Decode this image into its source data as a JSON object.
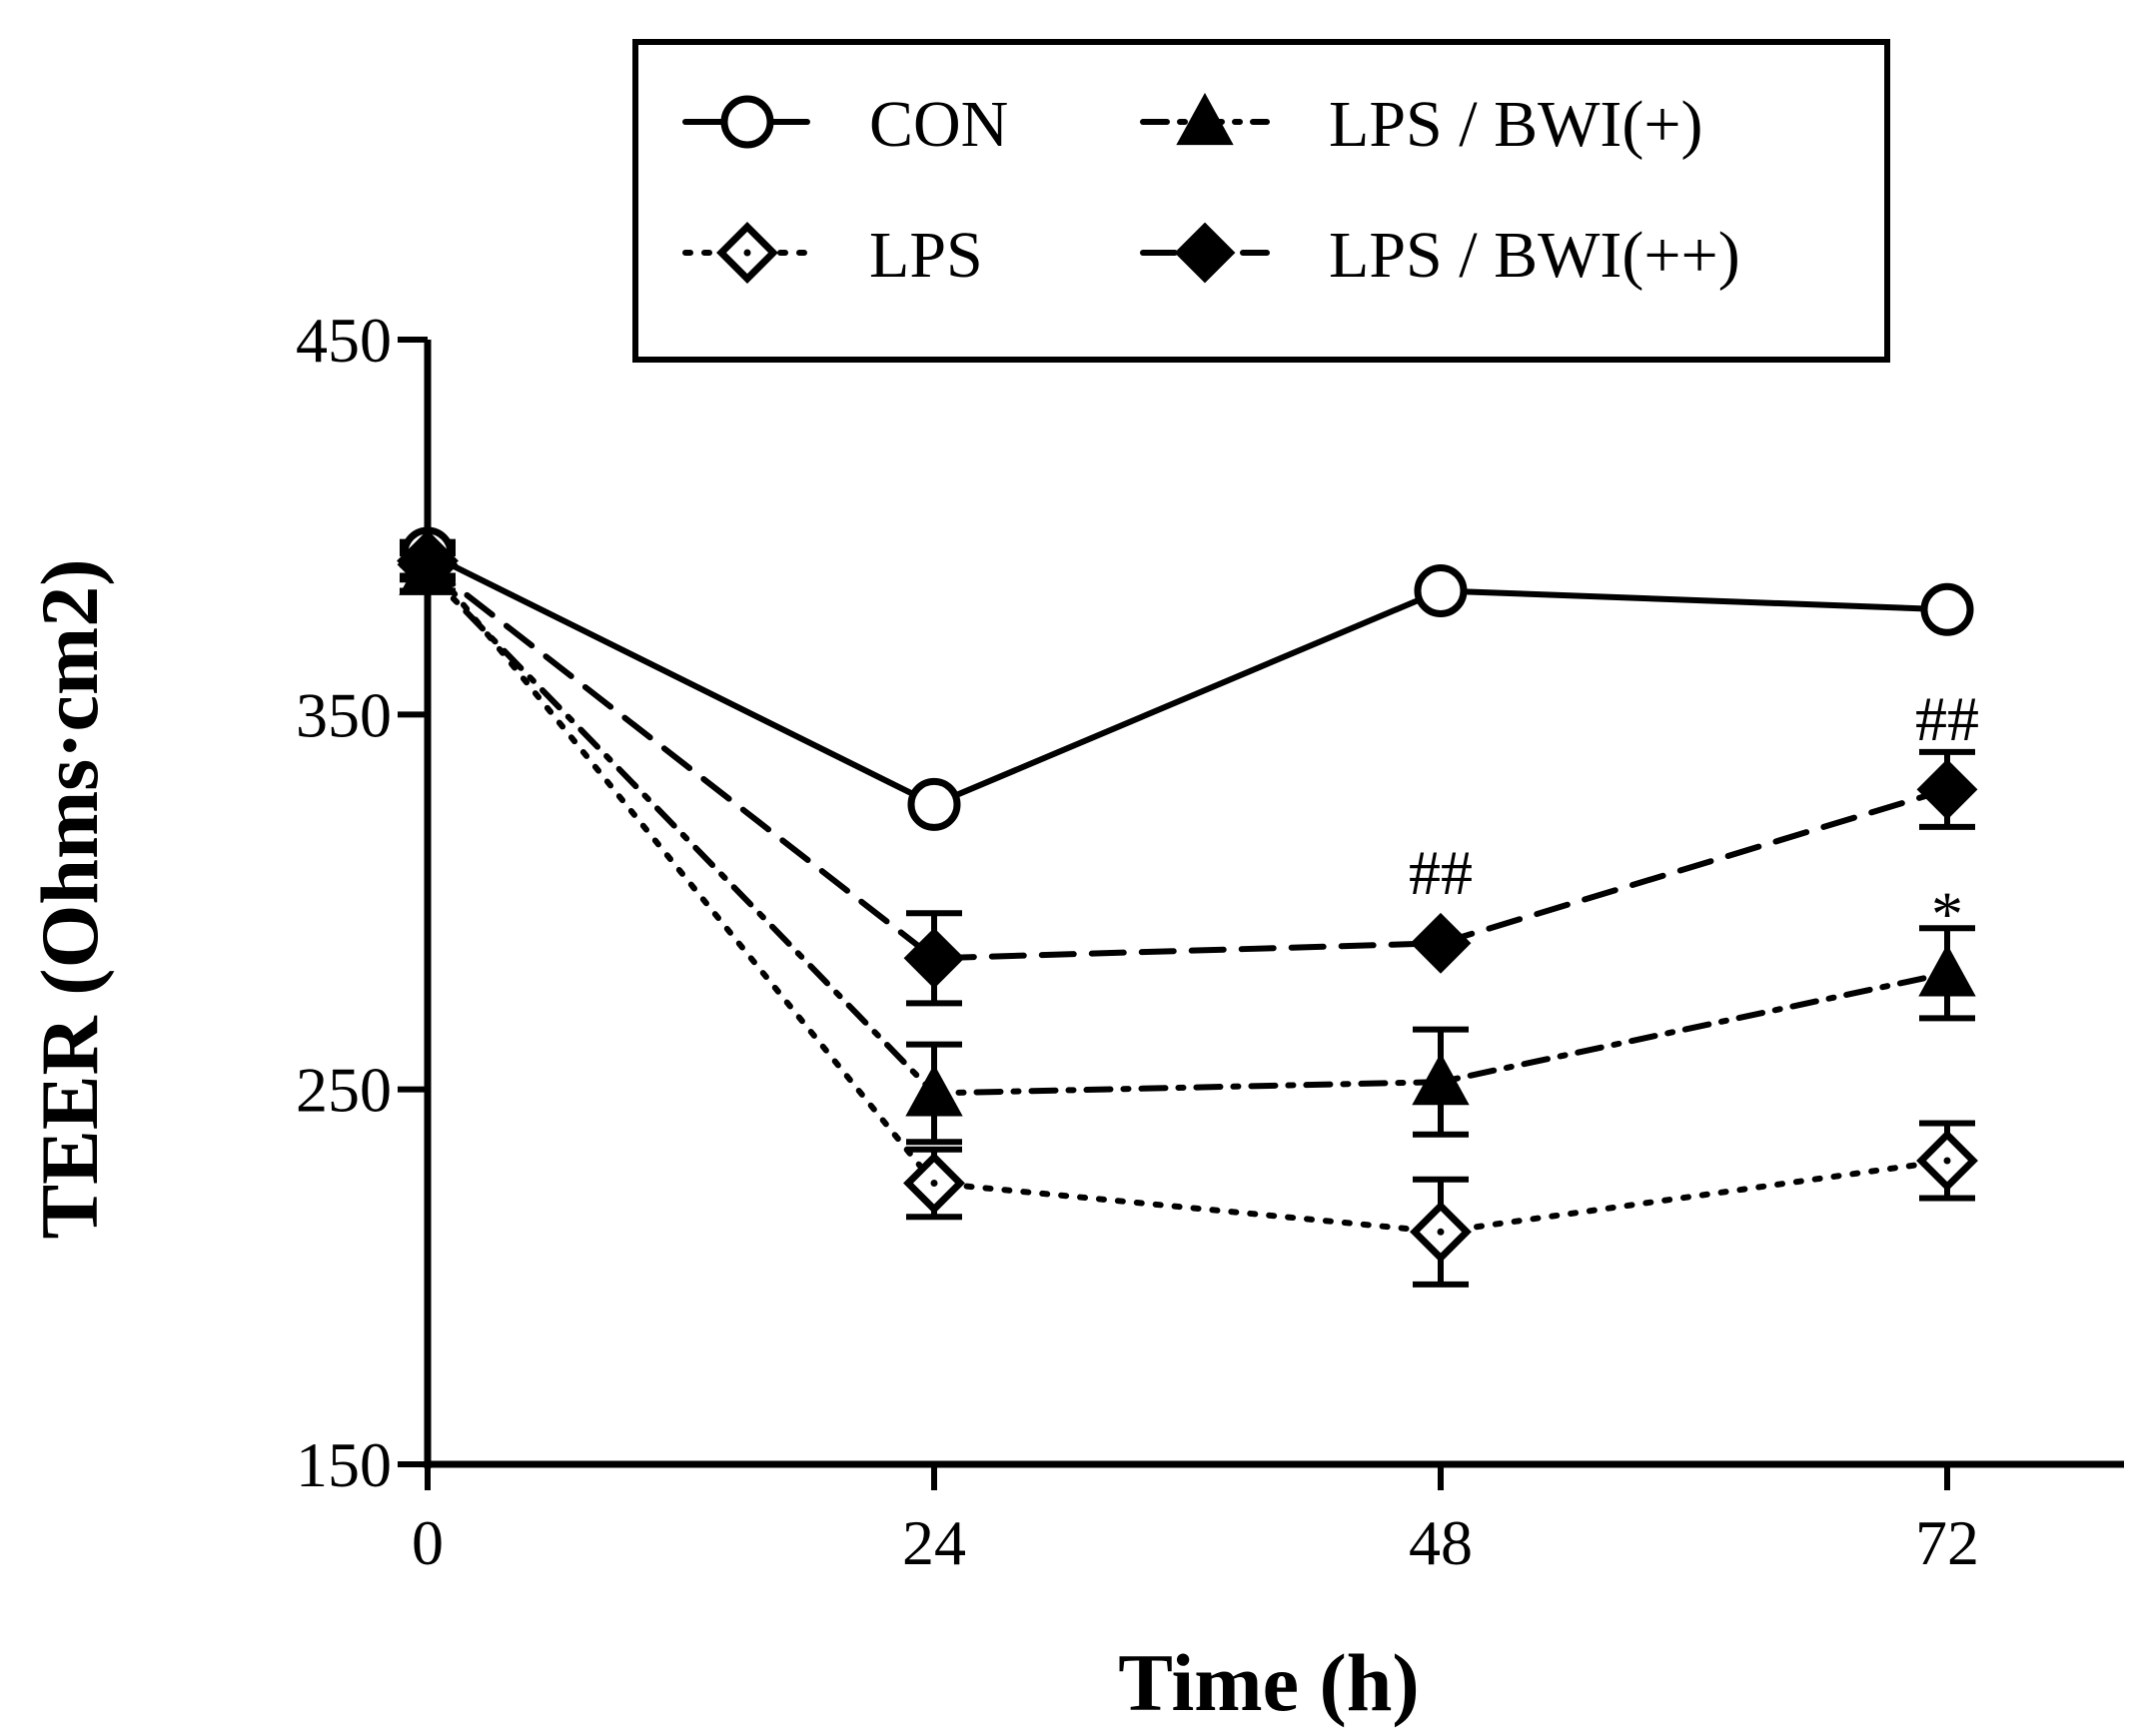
{
  "chart_data": {
    "type": "line",
    "title": "",
    "xlabel": "Time (h)",
    "ylabel": "TEER (Ohms·cm2)",
    "ylim": [
      150,
      450
    ],
    "yticks": [
      150,
      250,
      350,
      450
    ],
    "x": [
      0,
      24,
      48,
      72
    ],
    "xtick_labels": [
      "0",
      "24",
      "48",
      "72"
    ],
    "legend_position": "top",
    "series": [
      {
        "name": "CON",
        "marker": "open-circle",
        "line_style": "solid",
        "values": [
          393,
          326,
          383,
          378
        ],
        "errors": [
          3,
          0,
          0,
          0
        ]
      },
      {
        "name": "LPS",
        "marker": "open-diamond",
        "line_style": "dotted",
        "values": [
          391,
          225,
          212,
          231
        ],
        "errors": [
          4,
          9,
          14,
          10
        ]
      },
      {
        "name": "LPS / BWI(+)",
        "marker": "filled-triangle",
        "line_style": "dash-dot",
        "values": [
          388,
          249,
          252,
          281
        ],
        "errors": [
          5,
          13,
          14,
          12
        ]
      },
      {
        "name": "LPS / BWI(++)",
        "marker": "filled-diamond",
        "line_style": "dashed",
        "values": [
          390,
          285,
          289,
          330
        ],
        "errors": [
          4,
          12,
          0,
          10
        ]
      }
    ],
    "annotations": [
      {
        "text": "##",
        "x": 48,
        "y": 308
      },
      {
        "text": "##",
        "x": 72,
        "y": 349
      },
      {
        "text": "*",
        "x": 72,
        "y": 297
      }
    ]
  },
  "colors": {
    "ink": "#000000",
    "background": "#ffffff"
  }
}
